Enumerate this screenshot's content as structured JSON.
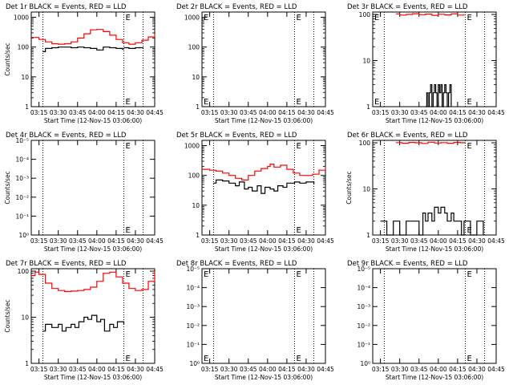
{
  "colors": {
    "events": "#000000",
    "lld": "#ff0000",
    "axis": "#000000",
    "background": "#ffffff"
  },
  "chart_data": [
    {
      "type": "line",
      "panel": "Det 1r",
      "title": "Det 1r BLACK = Events, RED = LLD",
      "ylabel": "Counts/sec",
      "xlabel": "Start Time (12-Nov-15 03:06:00)",
      "yscale": "log",
      "ylim_log10": [
        0,
        3.176
      ],
      "ytick_labels": [
        {
          "e": 0,
          "label": "1"
        },
        {
          "e": 1,
          "label": "10"
        },
        {
          "e": 2,
          "label": "100"
        },
        {
          "e": 3,
          "label": "1000"
        }
      ],
      "xtick_labels": [
        "03:15",
        "03:30",
        "03:45",
        "04:00",
        "04:15",
        "04:30",
        "04:45"
      ],
      "xlim_min": [
        9,
        105
      ],
      "dotted_lines_min": [
        18,
        81,
        96
      ],
      "e_markers_min": [
        81
      ],
      "series": [
        {
          "name": "LLD",
          "color": "red",
          "x_min": [
            9,
            15,
            20,
            25,
            30,
            35,
            40,
            45,
            50,
            55,
            60,
            65,
            70,
            75,
            80,
            85,
            90,
            95,
            100,
            105
          ],
          "y": [
            210,
            180,
            150,
            130,
            125,
            130,
            150,
            200,
            280,
            380,
            390,
            330,
            250,
            180,
            140,
            125,
            140,
            170,
            220,
            270
          ]
        },
        {
          "name": "Events",
          "color": "black",
          "x_min": [
            18,
            20,
            25,
            30,
            35,
            40,
            45,
            50,
            55,
            60,
            65,
            70,
            75,
            80,
            81
          ],
          "y": [
            70,
            90,
            95,
            100,
            100,
            95,
            100,
            95,
            90,
            80,
            100,
            95,
            90,
            85,
            85
          ]
        },
        {
          "name": "Events",
          "color": "black",
          "x_min": [
            81,
            85,
            90,
            96
          ],
          "y": [
            95,
            90,
            95,
            90
          ]
        }
      ]
    },
    {
      "type": "line",
      "panel": "Det 2r",
      "title": "Det 2r BLACK = Events, RED = LLD",
      "ylabel": "",
      "xlabel": "Start Time (12-Nov-15 03:06:00)",
      "yscale": "log",
      "ylim_log10": [
        0,
        3.176
      ],
      "ytick_labels": [
        {
          "e": 0,
          "label": "1"
        },
        {
          "e": 1,
          "label": "10"
        },
        {
          "e": 2,
          "label": "100"
        },
        {
          "e": 3,
          "label": "1000"
        }
      ],
      "xtick_labels": [
        "03:15",
        "03:30",
        "03:45",
        "04:00",
        "04:15",
        "04:30",
        "04:45"
      ],
      "xlim_min": [
        9,
        105
      ],
      "dotted_lines_min": [
        18,
        81,
        96
      ],
      "e_markers_min": [
        9,
        81
      ],
      "series": []
    },
    {
      "type": "line",
      "panel": "Det 3r",
      "title": "Det 3r BLACK = Events, RED = LLD",
      "ylabel": "",
      "xlabel": "Start Time (12-Nov-15 03:06:00)",
      "yscale": "log",
      "ylim_log10": [
        0,
        2.053
      ],
      "ytick_labels": [
        {
          "e": 0,
          "label": "1"
        },
        {
          "e": 1,
          "label": "10"
        },
        {
          "e": 2,
          "label": "100"
        }
      ],
      "xtick_labels": [
        "03:15",
        "03:30",
        "03:45",
        "04:00",
        "04:15",
        "04:30",
        "04:45"
      ],
      "xlim_min": [
        9,
        105
      ],
      "dotted_lines_min": [
        18,
        81,
        96
      ],
      "e_markers_min": [
        9,
        81
      ],
      "series": [
        {
          "name": "LLD",
          "color": "red",
          "x_min": [
            27,
            30,
            35,
            40,
            45,
            50,
            55,
            60,
            65,
            70,
            75,
            80
          ],
          "y": [
            103,
            97,
            100,
            104,
            99,
            102,
            96,
            101,
            98,
            103,
            97,
            101
          ]
        },
        {
          "name": "Events",
          "color": "black",
          "x_min": [
            50,
            51,
            52,
            53,
            54,
            55,
            56,
            57,
            58,
            59,
            60,
            61,
            62,
            63,
            64,
            65,
            66,
            67,
            68,
            69,
            70
          ],
          "y": [
            1,
            2,
            1,
            2,
            3,
            1,
            2,
            3,
            2,
            1,
            3,
            2,
            3,
            1,
            2,
            3,
            2,
            1,
            2,
            3,
            1
          ]
        }
      ]
    },
    {
      "type": "line",
      "panel": "Det 4r",
      "title": "Det 4r BLACK = Events, RED = LLD",
      "ylabel": "Counts/sec",
      "xlabel": "Start Time (12-Nov-15 03:06:00)",
      "yscale": "log",
      "ylim_log10": [
        0,
        1
      ],
      "ytick_labels": [
        {
          "e": 0,
          "label": "10⁰"
        },
        {
          "e": 0.2,
          "label": "10⁻¹"
        },
        {
          "e": 0.4,
          "label": "10⁻²"
        },
        {
          "e": 0.6,
          "label": "10⁻³"
        },
        {
          "e": 0.8,
          "label": "10⁻⁴"
        },
        {
          "e": 1,
          "label": "10⁻⁵"
        }
      ],
      "xtick_labels": [
        "03:15",
        "03:30",
        "03:45",
        "04:00",
        "04:15",
        "04:30",
        "04:45"
      ],
      "xlim_min": [
        9,
        105
      ],
      "dotted_lines_min": [
        18,
        81,
        96
      ],
      "e_markers_min": [
        81
      ],
      "series": []
    },
    {
      "type": "line",
      "panel": "Det 5r",
      "title": "Det 5r BLACK = Events, RED = LLD",
      "ylabel": "",
      "xlabel": "Start Time (12-Nov-15 03:06:00)",
      "yscale": "log",
      "ylim_log10": [
        0,
        3.176
      ],
      "ytick_labels": [
        {
          "e": 0,
          "label": "1"
        },
        {
          "e": 1,
          "label": "10"
        },
        {
          "e": 2,
          "label": "100"
        },
        {
          "e": 3,
          "label": "1000"
        }
      ],
      "xtick_labels": [
        "03:15",
        "03:30",
        "03:45",
        "04:00",
        "04:15",
        "04:30",
        "04:45"
      ],
      "xlim_min": [
        9,
        105
      ],
      "dotted_lines_min": [
        18,
        81,
        96
      ],
      "e_markers_min": [
        81
      ],
      "series": [
        {
          "name": "LLD",
          "color": "red",
          "x_min": [
            9,
            15,
            20,
            25,
            30,
            35,
            40,
            45,
            50,
            55,
            60,
            62,
            65,
            70,
            75,
            80,
            85,
            90,
            95,
            100,
            105
          ],
          "y": [
            160,
            150,
            140,
            120,
            100,
            80,
            70,
            100,
            140,
            170,
            200,
            240,
            190,
            220,
            160,
            120,
            100,
            100,
            110,
            150,
            200
          ]
        },
        {
          "name": "Events",
          "color": "black",
          "x_min": [
            18,
            20,
            25,
            30,
            35,
            38,
            42,
            45,
            48,
            52,
            55,
            58,
            62,
            65,
            68,
            72,
            75,
            81
          ],
          "y": [
            55,
            70,
            65,
            55,
            45,
            60,
            35,
            40,
            30,
            45,
            25,
            40,
            35,
            30,
            45,
            40,
            55,
            60
          ]
        },
        {
          "name": "Events",
          "color": "black",
          "x_min": [
            81,
            85,
            90,
            96
          ],
          "y": [
            60,
            55,
            60,
            50
          ]
        }
      ]
    },
    {
      "type": "line",
      "panel": "Det 6r",
      "title": "Det 6r BLACK = Events, RED = LLD",
      "ylabel": "Counts/sec",
      "xlabel": "Start Time (12-Nov-15 03:06:00)",
      "yscale": "log",
      "ylim_log10": [
        0,
        2.053
      ],
      "ytick_labels": [
        {
          "e": 0,
          "label": "1"
        },
        {
          "e": 1,
          "label": "10"
        },
        {
          "e": 2,
          "label": "100"
        }
      ],
      "xtick_labels": [
        "03:15",
        "03:30",
        "03:45",
        "04:00",
        "04:15",
        "04:30",
        "04:45"
      ],
      "xlim_min": [
        9,
        105
      ],
      "dotted_lines_min": [
        18,
        81,
        96
      ],
      "e_markers_min": [
        81
      ],
      "series": [
        {
          "name": "LLD",
          "color": "red",
          "x_min": [
            27,
            32,
            37,
            42,
            47,
            52,
            57,
            62,
            67,
            72,
            77,
            81
          ],
          "y": [
            101,
            98,
            102,
            100,
            97,
            103,
            99,
            101,
            98,
            102,
            100,
            99
          ]
        },
        {
          "name": "Events",
          "color": "black",
          "x_min": [
            15,
            20,
            25,
            30,
            35,
            40,
            45,
            48,
            50,
            52,
            55,
            57,
            60,
            62,
            65,
            67,
            70,
            72,
            75,
            78,
            80,
            85,
            90,
            95
          ],
          "y": [
            2,
            1,
            2,
            1,
            2,
            2,
            1,
            3,
            2,
            3,
            2,
            4,
            3,
            4,
            3,
            2,
            3,
            2,
            2,
            1,
            2,
            1,
            2,
            1
          ]
        }
      ]
    },
    {
      "type": "line",
      "panel": "Det 7r",
      "title": "Det 7r BLACK = Events, RED = LLD",
      "ylabel": "Counts/sec",
      "xlabel": "Start Time (12-Nov-15 03:06:00)",
      "yscale": "log",
      "ylim_log10": [
        0,
        2.053
      ],
      "ytick_labels": [
        {
          "e": 0,
          "label": "1"
        },
        {
          "e": 1,
          "label": "10"
        },
        {
          "e": 2,
          "label": "100"
        }
      ],
      "xtick_labels": [
        "03:15",
        "03:30",
        "03:45",
        "04:00",
        "04:15",
        "04:30",
        "04:45"
      ],
      "xlim_min": [
        9,
        105
      ],
      "dotted_lines_min": [
        18,
        81,
        96
      ],
      "e_markers_min": [
        81
      ],
      "series": [
        {
          "name": "LLD",
          "color": "red",
          "x_min": [
            9,
            12,
            15,
            20,
            25,
            30,
            35,
            40,
            45,
            50,
            55,
            60,
            65,
            70,
            75,
            80,
            85,
            90,
            95,
            100,
            105
          ],
          "y": [
            80,
            95,
            85,
            55,
            42,
            38,
            36,
            37,
            38,
            40,
            45,
            60,
            90,
            95,
            75,
            55,
            42,
            38,
            40,
            60,
            100
          ]
        },
        {
          "name": "Events",
          "color": "black",
          "x_min": [
            18,
            20,
            25,
            30,
            33,
            36,
            40,
            43,
            46,
            50,
            53,
            56,
            60,
            63,
            66,
            70,
            73,
            76,
            81
          ],
          "y": [
            5,
            7,
            6,
            7,
            5,
            6,
            7,
            6,
            8,
            10,
            9,
            11,
            8,
            9,
            5,
            7,
            6,
            8,
            7
          ]
        }
      ]
    },
    {
      "type": "line",
      "panel": "Det 8r",
      "title": "Det 8r BLACK = Events, RED = LLD",
      "ylabel": "",
      "xlabel": "Start Time (12-Nov-15 03:06:00)",
      "yscale": "log",
      "ylim_log10": [
        0,
        1
      ],
      "ytick_labels": [
        {
          "e": 0,
          "label": "10⁰"
        },
        {
          "e": 0.2,
          "label": "10⁻¹"
        },
        {
          "e": 0.4,
          "label": "10⁻²"
        },
        {
          "e": 0.6,
          "label": "10⁻³"
        },
        {
          "e": 0.8,
          "label": "10⁻⁴"
        },
        {
          "e": 1,
          "label": "10⁻⁵"
        }
      ],
      "xtick_labels": [
        "03:15",
        "03:30",
        "03:45",
        "04:00",
        "04:15",
        "04:30",
        "04:45"
      ],
      "xlim_min": [
        9,
        105
      ],
      "dotted_lines_min": [
        18,
        81,
        96
      ],
      "e_markers_min": [
        9,
        81
      ],
      "series": []
    },
    {
      "type": "line",
      "panel": "Det 9r",
      "title": "Det 9r BLACK = Events, RED = LLD",
      "ylabel": "",
      "xlabel": "Start Time (12-Nov-15 03:06:00)",
      "yscale": "log",
      "ylim_log10": [
        0,
        1
      ],
      "ytick_labels": [
        {
          "e": 0,
          "label": "10⁰"
        },
        {
          "e": 0.2,
          "label": "10⁻¹"
        },
        {
          "e": 0.4,
          "label": "10⁻²"
        },
        {
          "e": 0.6,
          "label": "10⁻³"
        },
        {
          "e": 0.8,
          "label": "10⁻⁴"
        },
        {
          "e": 1,
          "label": "10⁻⁵"
        }
      ],
      "xtick_labels": [
        "03:15",
        "03:30",
        "03:45",
        "04:00",
        "04:15",
        "04:30",
        "04:45"
      ],
      "xlim_min": [
        9,
        105
      ],
      "dotted_lines_min": [
        18,
        81,
        96
      ],
      "e_markers_min": [
        81
      ],
      "series": []
    }
  ]
}
